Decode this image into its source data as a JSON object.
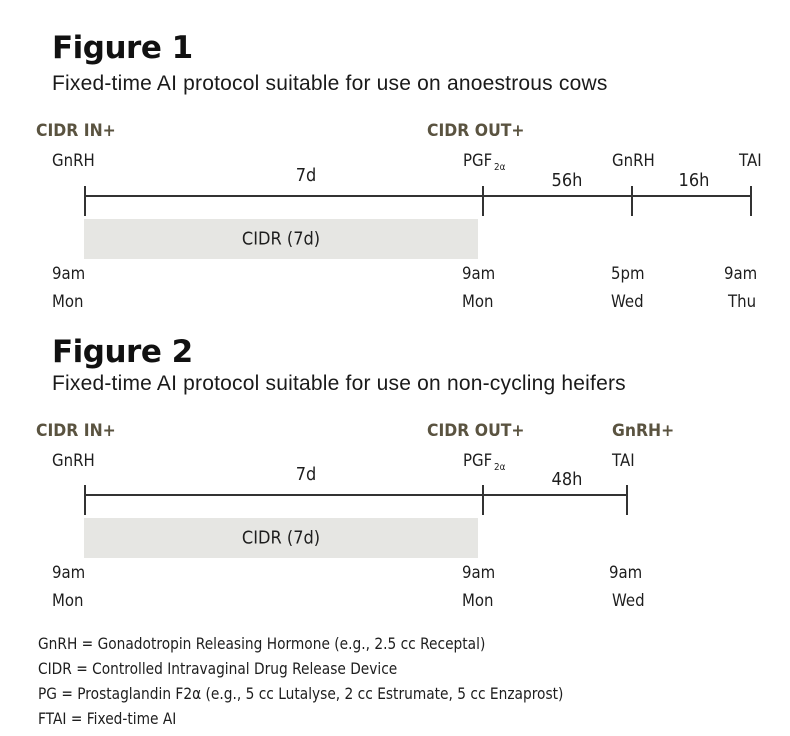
{
  "figure1": {
    "title": "Figure 1",
    "subtitle": "Fixed-time AI protocol suitable for use on anoestrous cows",
    "steps": [
      "CIDR IN+",
      "CIDR OUT+"
    ],
    "events": [
      "GnRH",
      "PGF",
      "2α",
      "GnRH",
      "TAI"
    ],
    "durations": [
      "7d",
      "56h",
      "16h"
    ],
    "band_label": "CIDR (7d)",
    "times": [
      {
        "time": "9am",
        "day": "Mon"
      },
      {
        "time": "9am",
        "day": "Mon"
      },
      {
        "time": "5pm",
        "day": "Wed"
      },
      {
        "time": "9am",
        "day": "Thu"
      }
    ]
  },
  "figure2": {
    "title": "Figure 2",
    "subtitle": "Fixed-time AI protocol suitable for use on non-cycling heifers",
    "steps": [
      "CIDR IN+",
      "CIDR OUT+",
      "GnRH+"
    ],
    "events": [
      "GnRH",
      "PGF",
      "2α",
      "TAI"
    ],
    "durations": [
      "7d",
      "48h"
    ],
    "band_label": "CIDR (7d)",
    "times": [
      {
        "time": "9am",
        "day": "Mon"
      },
      {
        "time": "9am",
        "day": "Mon"
      },
      {
        "time": "9am",
        "day": "Wed"
      }
    ]
  },
  "legend": [
    "GnRH = Gonadotropin Releasing Hormone (e.g., 2.5 cc Receptal)",
    "CIDR = Controlled Intravaginal Drug Release Device",
    "PG = Prostaglandin F2α (e.g., 5 cc Lutalyse, 2 cc Estrumate, 5 cc Enzaprost)",
    "FTAI = Fixed-time AI"
  ]
}
